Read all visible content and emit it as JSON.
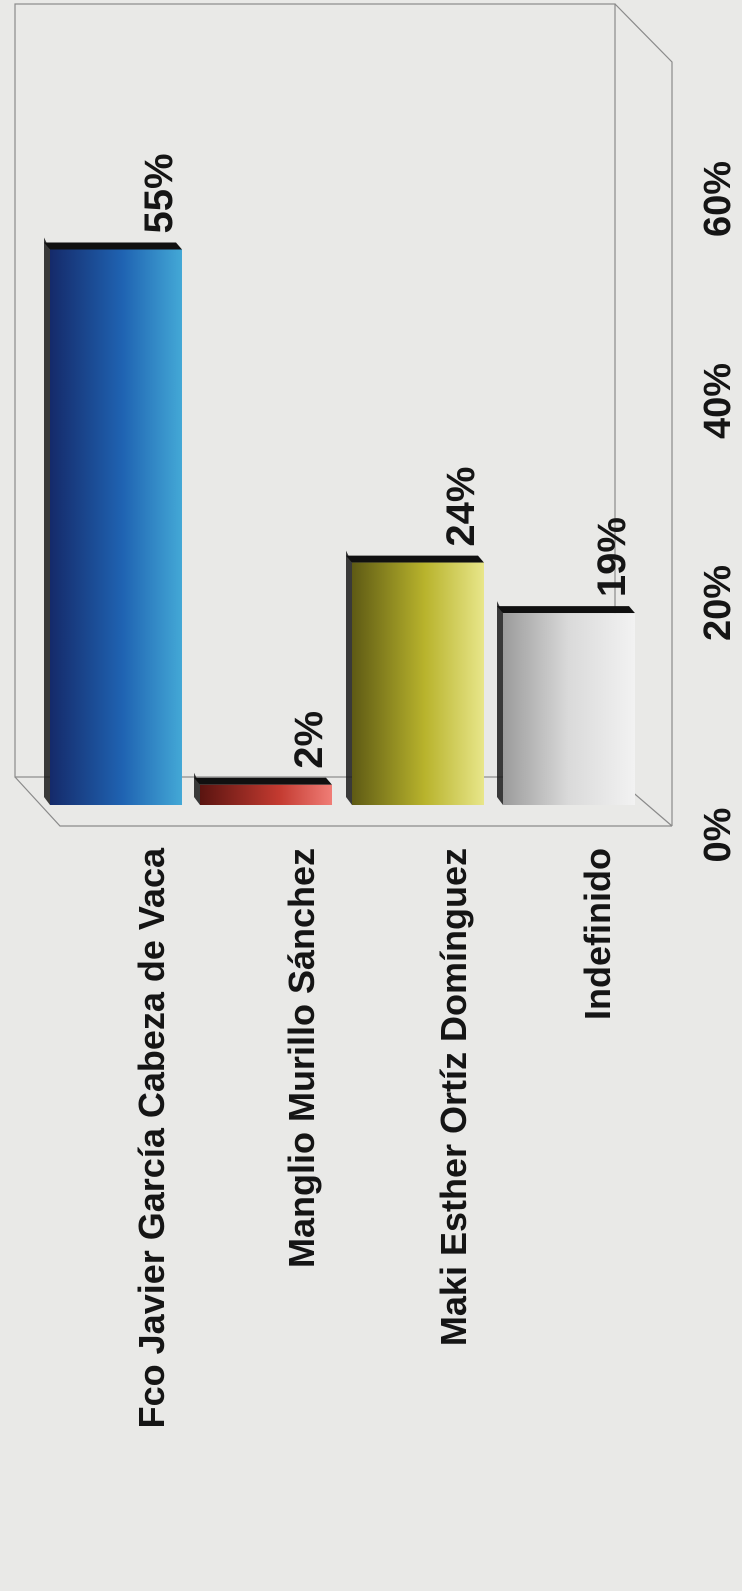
{
  "chart_data": {
    "type": "bar",
    "orientation": "vertical-bars, rotated page",
    "categories": [
      "Fco Javier García Cabeza de Vaca",
      "Manglio Murillo Sánchez",
      "Maki Esther Ortíz Domínguez",
      "Indefinido"
    ],
    "values": [
      55,
      2,
      24,
      19
    ],
    "value_labels": [
      "55%",
      "2%",
      "24%",
      "19%"
    ],
    "colors": [
      "#2a7fc0",
      "#d94a3c",
      "#c9c43a",
      "#e6e6e6"
    ],
    "yticks": [
      0,
      20,
      40,
      60
    ],
    "ytick_labels": [
      "0%",
      "20%",
      "40%",
      "60%"
    ],
    "ylim": [
      0,
      60
    ],
    "grid": false,
    "legend": "none",
    "title": "",
    "xlabel": "",
    "ylabel": ""
  }
}
